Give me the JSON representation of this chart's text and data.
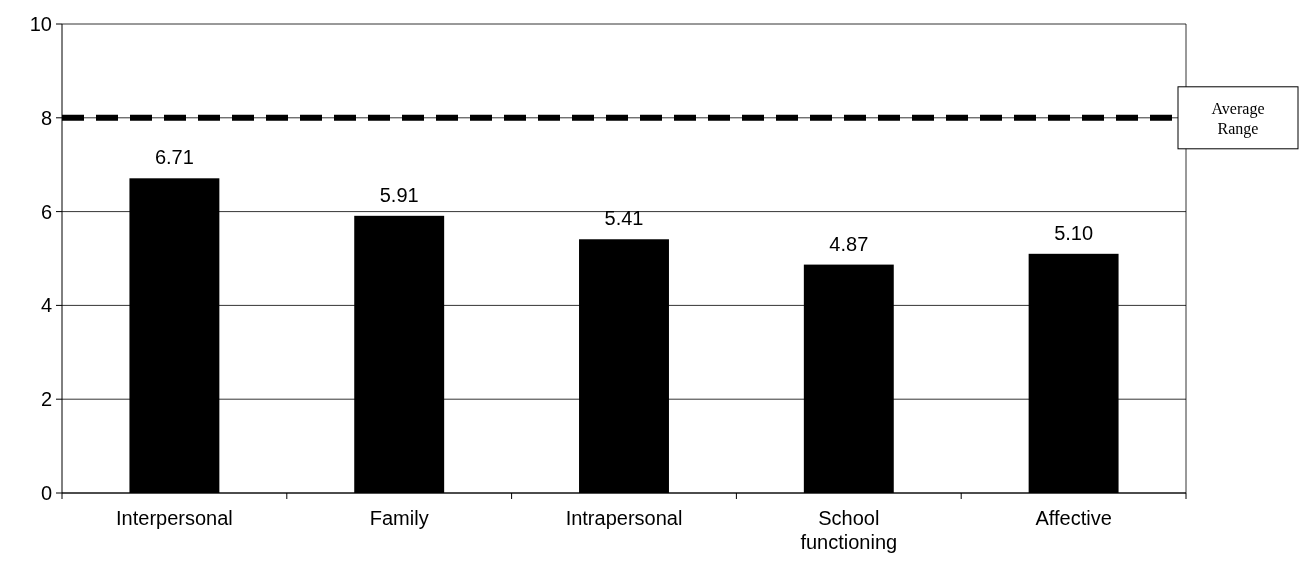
{
  "chart_data": {
    "type": "bar",
    "categories": [
      "Interpersonal",
      "Family",
      "Intrapersonal",
      "School functioning",
      "Affective"
    ],
    "values": [
      6.71,
      5.91,
      5.41,
      4.87,
      5.1
    ],
    "value_labels": [
      "6.71",
      "5.91",
      "5.41",
      "4.87",
      "5.10"
    ],
    "color": "#000000",
    "ylim": [
      0,
      10
    ],
    "yticks": [
      0,
      2,
      4,
      6,
      8,
      10
    ],
    "grid": "y",
    "ref_lines": [
      {
        "axis": "y",
        "value": 8,
        "label": "Average Range",
        "color": "#000000",
        "line_style": "dashed"
      }
    ]
  }
}
